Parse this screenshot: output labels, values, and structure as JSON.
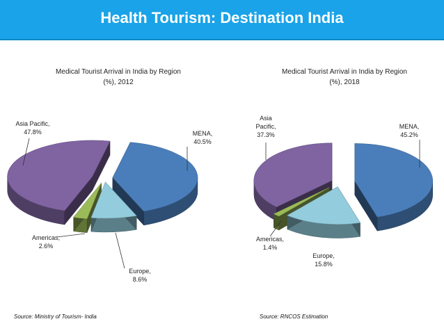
{
  "header": {
    "title": "Health Tourism: Destination India"
  },
  "charts": [
    {
      "title_line1": "Medical Tourist Arrival in India by Region",
      "title_line2": "(%), 2012",
      "source": "Source: Ministry of Tourism- India",
      "labels": {
        "asia": [
          "Asia Pacific,",
          "47.8%"
        ],
        "mena": [
          "MENA,",
          "40.5%"
        ],
        "americas": [
          "Americas,",
          "2.6%"
        ],
        "europe": [
          "Europe,",
          "8.6%"
        ]
      }
    },
    {
      "title_line1": "Medical Tourist Arrival in India by Region",
      "title_line2": "(%), 2018",
      "source": "Source: RNCOS Estimation",
      "labels": {
        "asia": [
          "Asia",
          "Pacific,",
          "37.3%"
        ],
        "mena": [
          "MENA,",
          "45.2%"
        ],
        "americas": [
          "Americas,",
          "1.4%"
        ],
        "europe": [
          "Europe,",
          "15.8%"
        ]
      }
    }
  ],
  "chart_data": [
    {
      "type": "pie",
      "title": "Medical Tourist Arrival in India by Region (%), 2012",
      "categories": [
        "MENA",
        "Europe",
        "Americas",
        "Asia Pacific"
      ],
      "values": [
        40.5,
        8.6,
        2.6,
        47.8
      ],
      "colors": [
        "#4a7ebb",
        "#93cddd",
        "#9bbb59",
        "#8064a2"
      ]
    },
    {
      "type": "pie",
      "title": "Medical Tourist Arrival in India by Region (%), 2018",
      "categories": [
        "MENA",
        "Europe",
        "Americas",
        "Asia Pacific"
      ],
      "values": [
        45.2,
        15.8,
        1.4,
        37.3
      ],
      "colors": [
        "#4a7ebb",
        "#93cddd",
        "#9bbb59",
        "#8064a2"
      ]
    }
  ]
}
